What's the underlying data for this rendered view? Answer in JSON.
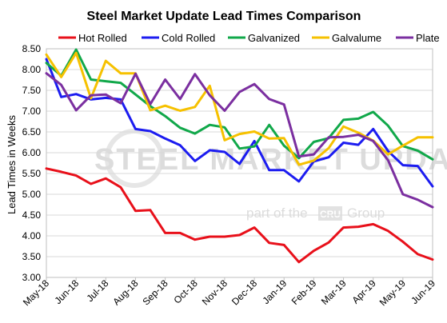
{
  "chart_data": {
    "type": "line",
    "title": "Steel Market Update Lead Times Comparison",
    "xlabel": "",
    "ylabel": "Lead Times in Weeks",
    "ylim": [
      3.0,
      8.5
    ],
    "y_ticks": [
      "3.00",
      "3.50",
      "4.00",
      "4.50",
      "5.00",
      "5.50",
      "6.00",
      "6.50",
      "7.00",
      "7.50",
      "8.00",
      "8.50"
    ],
    "x_tick_labels": [
      "May-18",
      "Jun-18",
      "Jul-18",
      "Aug-18",
      "Sep-18",
      "Oct-18",
      "Nov-18",
      "Dec-18",
      "Jan-19",
      "Feb-19",
      "Mar-19",
      "Apr-19",
      "May-19",
      "Jun-19"
    ],
    "grid": true,
    "legend_position": "top",
    "watermark": {
      "main": "STEEL MARKET UPDATE",
      "sub_left": "part of the",
      "sub_box": "CRU",
      "sub_right": "Group"
    },
    "series": [
      {
        "name": "Hot Rolled",
        "color": "#e8101a",
        "values": [
          5.62,
          5.54,
          5.45,
          5.25,
          5.38,
          5.17,
          4.6,
          4.62,
          4.07,
          4.07,
          3.91,
          3.98,
          3.98,
          4.02,
          4.2,
          3.83,
          3.78,
          3.37,
          3.64,
          3.84,
          4.2,
          4.22,
          4.28,
          4.12,
          3.86,
          3.56,
          3.43
        ]
      },
      {
        "name": "Cold Rolled",
        "color": "#1c1cf0",
        "values": [
          8.25,
          7.34,
          7.41,
          7.28,
          7.32,
          7.28,
          6.57,
          6.52,
          6.34,
          6.18,
          5.8,
          6.06,
          6.02,
          5.73,
          6.28,
          5.58,
          5.58,
          5.31,
          5.79,
          5.89,
          6.24,
          6.19,
          6.57,
          6.04,
          5.7,
          5.68,
          5.19
        ]
      },
      {
        "name": "Galvanized",
        "color": "#11a84a",
        "values": [
          8.16,
          7.85,
          8.48,
          7.76,
          7.72,
          7.68,
          7.4,
          7.12,
          6.88,
          6.6,
          6.46,
          6.67,
          6.61,
          6.1,
          6.15,
          6.67,
          6.17,
          5.87,
          6.26,
          6.35,
          6.79,
          6.82,
          6.98,
          6.65,
          6.16,
          6.05,
          5.84
        ]
      },
      {
        "name": "Galvalume",
        "color": "#f6c100",
        "values": [
          8.36,
          7.82,
          8.4,
          7.31,
          8.21,
          7.91,
          7.91,
          7.02,
          7.13,
          7.01,
          7.1,
          7.61,
          6.3,
          6.45,
          6.51,
          6.34,
          6.35,
          5.71,
          5.81,
          6.11,
          6.63,
          6.48,
          6.29,
          5.96,
          6.17,
          6.37,
          6.37
        ]
      },
      {
        "name": "Plate",
        "color": "#7b2fa0",
        "values": [
          7.91,
          7.63,
          7.02,
          7.38,
          7.4,
          7.19,
          7.9,
          7.17,
          7.76,
          7.29,
          7.89,
          7.38,
          7.01,
          7.46,
          7.65,
          7.29,
          7.16,
          5.91,
          5.96,
          6.37,
          6.38,
          6.43,
          6.28,
          5.82,
          5.0,
          4.87,
          4.69
        ]
      }
    ]
  }
}
